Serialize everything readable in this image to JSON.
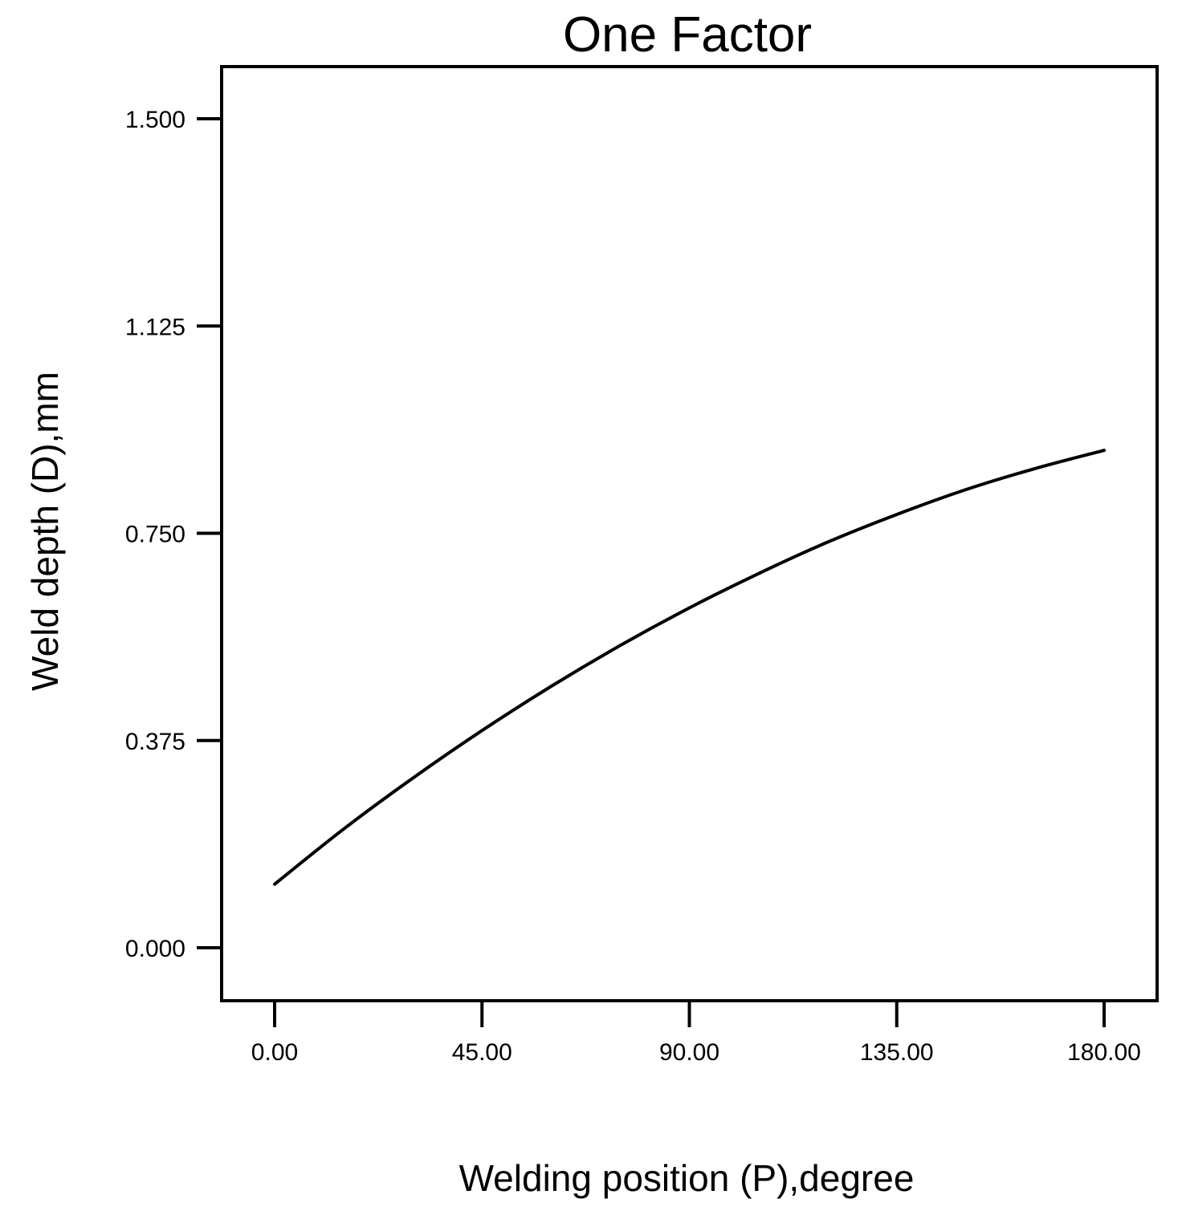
{
  "chart_data": {
    "type": "line",
    "title": "One Factor",
    "xlabel": "Welding position (P),degree",
    "ylabel": "Weld depth (D),mm",
    "xlim": [
      0,
      180
    ],
    "ylim": [
      0,
      1.5
    ],
    "x_ticks": [
      0,
      45,
      90,
      135,
      180
    ],
    "x_tick_labels": [
      "0.00",
      "45.00",
      "90.00",
      "135.00",
      "180.00"
    ],
    "y_ticks": [
      0,
      0.375,
      0.75,
      1.125,
      1.5
    ],
    "y_tick_labels": [
      "0.000",
      "0.375",
      "0.750",
      "1.125",
      "1.500"
    ],
    "grid": false,
    "line_color": "#000000",
    "series": [
      {
        "x": [
          0,
          15,
          30,
          45,
          60,
          75,
          90,
          105,
          120,
          135,
          150,
          165,
          180
        ],
        "y": [
          0.115,
          0.215,
          0.307,
          0.393,
          0.473,
          0.547,
          0.615,
          0.677,
          0.734,
          0.784,
          0.829,
          0.867,
          0.9
        ]
      }
    ]
  }
}
